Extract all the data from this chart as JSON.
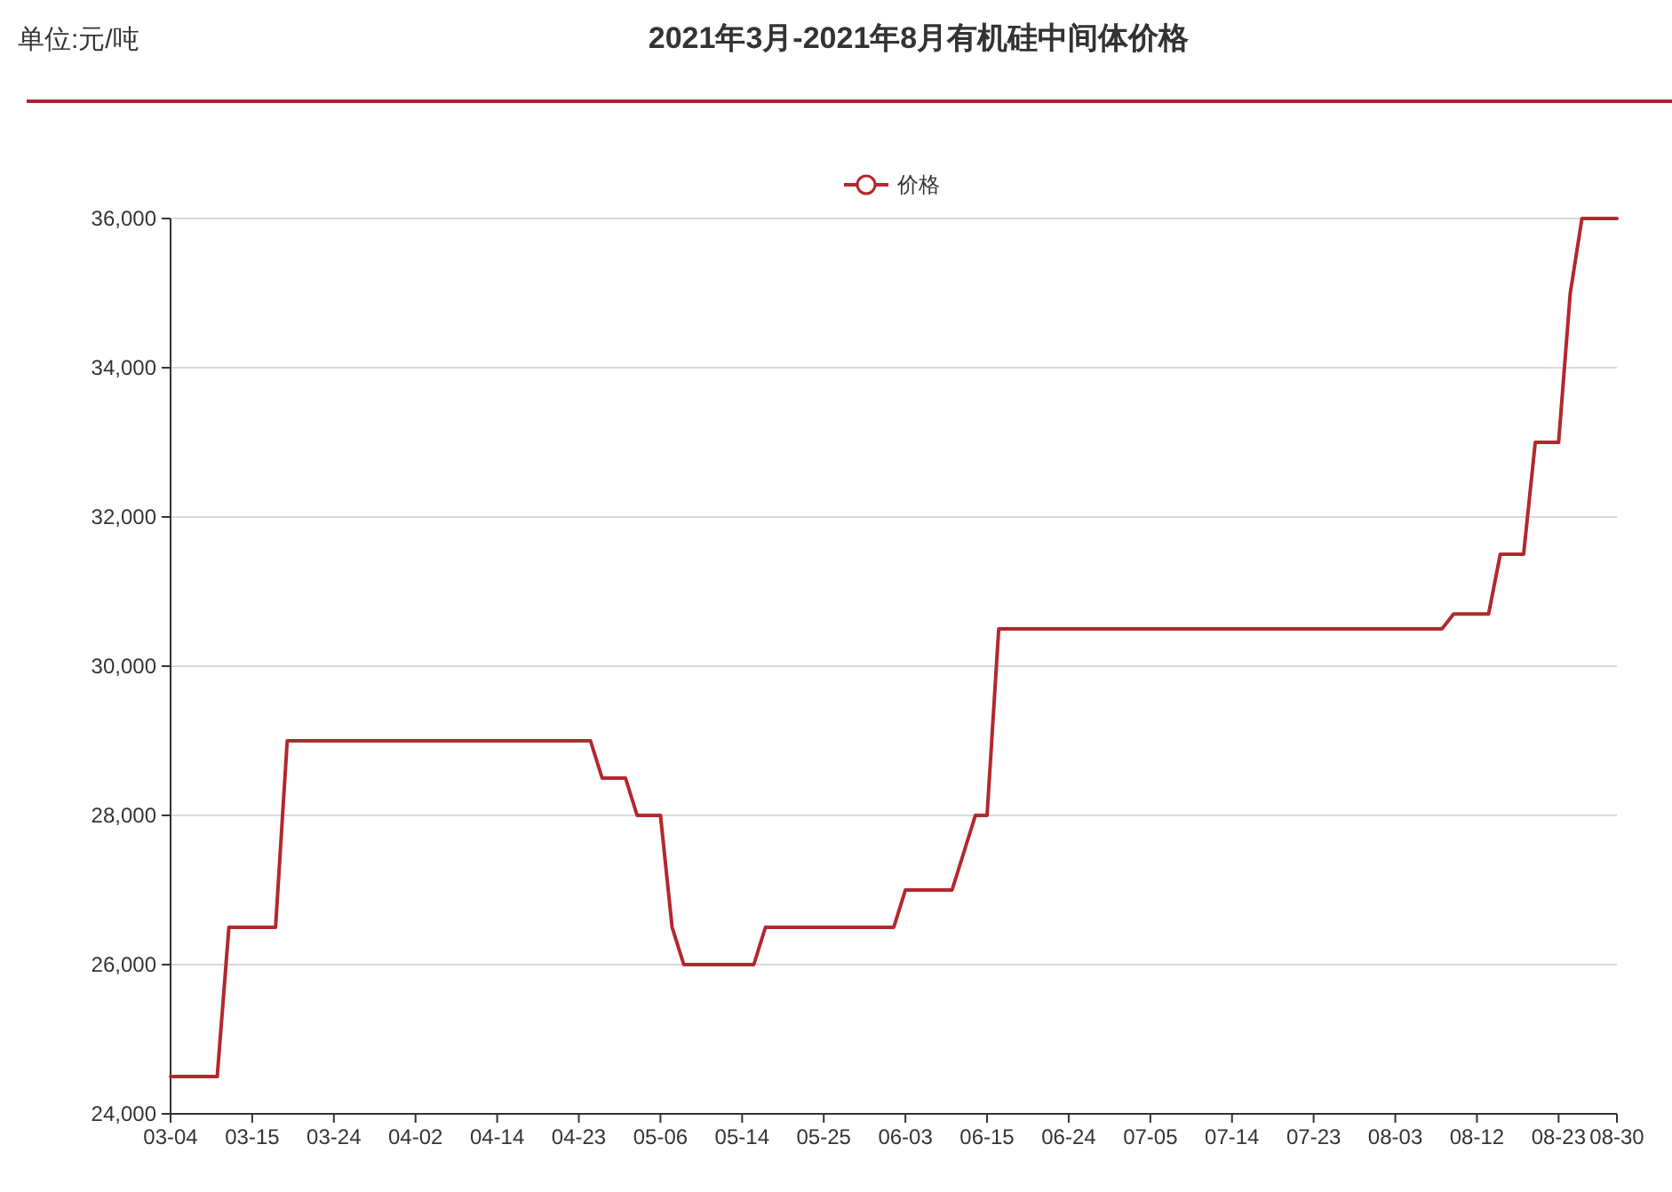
{
  "chart_data": {
    "type": "line",
    "title": "2021年3月-2021年8月有机硅中间体价格",
    "annotations": [
      "单位:元/吨"
    ],
    "categories": [
      "03-04",
      null,
      null,
      null,
      null,
      null,
      null,
      "03-15",
      null,
      null,
      null,
      null,
      null,
      null,
      "03-24",
      null,
      null,
      null,
      null,
      null,
      null,
      "04-02",
      null,
      null,
      null,
      null,
      null,
      null,
      "04-14",
      null,
      null,
      null,
      null,
      null,
      null,
      "04-23",
      null,
      null,
      null,
      null,
      null,
      null,
      "05-06",
      null,
      null,
      null,
      null,
      null,
      null,
      "05-14",
      null,
      null,
      null,
      null,
      null,
      null,
      "05-25",
      null,
      null,
      null,
      null,
      null,
      null,
      "06-03",
      null,
      null,
      null,
      null,
      null,
      null,
      "06-15",
      null,
      null,
      null,
      null,
      null,
      null,
      "06-24",
      null,
      null,
      null,
      null,
      null,
      null,
      "07-05",
      null,
      null,
      null,
      null,
      null,
      null,
      "07-14",
      null,
      null,
      null,
      null,
      null,
      null,
      "07-23",
      null,
      null,
      null,
      null,
      null,
      null,
      "08-03",
      null,
      null,
      null,
      null,
      null,
      null,
      "08-12",
      null,
      null,
      null,
      null,
      null,
      null,
      "08-23",
      null,
      null,
      null,
      null,
      "08-30"
    ],
    "series": [
      {
        "name": "价格",
        "color": "#b3282d",
        "values": [
          24500,
          24500,
          24500,
          24500,
          24500,
          26500,
          26500,
          26500,
          26500,
          26500,
          29000,
          29000,
          29000,
          29000,
          29000,
          29000,
          29000,
          29000,
          29000,
          29000,
          29000,
          29000,
          29000,
          29000,
          29000,
          29000,
          29000,
          29000,
          29000,
          29000,
          29000,
          29000,
          29000,
          29000,
          29000,
          29000,
          29000,
          28500,
          28500,
          28500,
          28000,
          28000,
          28000,
          26500,
          26000,
          26000,
          26000,
          26000,
          26000,
          26000,
          26000,
          26500,
          26500,
          26500,
          26500,
          26500,
          26500,
          26500,
          26500,
          26500,
          26500,
          26500,
          26500,
          27000,
          27000,
          27000,
          27000,
          27000,
          27500,
          28000,
          28000,
          30500,
          30500,
          30500,
          30500,
          30500,
          30500,
          30500,
          30500,
          30500,
          30500,
          30500,
          30500,
          30500,
          30500,
          30500,
          30500,
          30500,
          30500,
          30500,
          30500,
          30500,
          30500,
          30500,
          30500,
          30500,
          30500,
          30500,
          30500,
          30500,
          30500,
          30500,
          30500,
          30500,
          30500,
          30500,
          30500,
          30500,
          30500,
          30500,
          30700,
          30700,
          30700,
          30700,
          31500,
          31500,
          31500,
          33000,
          33000,
          33000,
          35000,
          36000,
          36000,
          36000,
          36000
        ]
      }
    ],
    "ylim": [
      24000,
      36000
    ],
    "yticks": [
      {
        "value": 24000,
        "label": "24,000"
      },
      {
        "value": 26000,
        "label": "26,000"
      },
      {
        "value": 28000,
        "label": "28,000"
      },
      {
        "value": 30000,
        "label": "30,000"
      },
      {
        "value": 32000,
        "label": "32,000"
      },
      {
        "value": 34000,
        "label": "34,000"
      },
      {
        "value": 36000,
        "label": "36,000"
      }
    ],
    "grid": "y",
    "legend": "top"
  }
}
